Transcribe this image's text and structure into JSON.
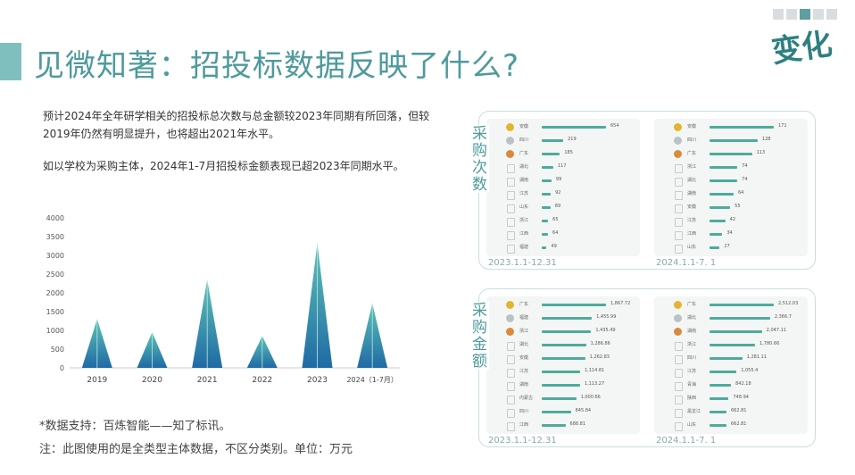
{
  "title": "见微知著：招投标数据反映了什么?",
  "logo_text": "变化",
  "nav_dots": 5,
  "nav_active": 3,
  "paragraph1": "预计2024年全年研学相关的招投标总次数与总金额较2023年同期有所回落，但较2019年仍然有明显提升，也将超出2021年水平。",
  "paragraph2": "如以学校为采购主体，2024年1-7月招投标金额表现已超2023年同期水平。",
  "note1": "*数据支持：百炼智能——知了标讯。",
  "note2": "注：此图使用的是全类型主体数据，不区分类别。单位：万元",
  "chart_data": [
    {
      "type": "area",
      "categories": [
        "2019",
        "2020",
        "2021",
        "2022",
        "2023",
        "2024（1-7月）"
      ],
      "values": [
        1300,
        950,
        2350,
        850,
        3320,
        1720
      ],
      "ylim": [
        0,
        4000
      ],
      "yticks": [
        0,
        500,
        1000,
        1500,
        2000,
        2500,
        3000,
        3500,
        4000
      ],
      "colors": [
        "#1f6aa5",
        "#5ec4b6"
      ]
    },
    {
      "type": "bar",
      "side_label": "采购次数",
      "left": {
        "period": "2023.1.1-12.31",
        "rows": [
          {
            "name": "安徽",
            "value": 654
          },
          {
            "name": "四川",
            "value": 219
          },
          {
            "name": "广东",
            "value": 185
          },
          {
            "name": "湖北",
            "value": 117
          },
          {
            "name": "湖南",
            "value": 99
          },
          {
            "name": "江苏",
            "value": 92
          },
          {
            "name": "山东",
            "value": 89
          },
          {
            "name": "浙江",
            "value": 65
          },
          {
            "name": "江西",
            "value": 64
          },
          {
            "name": "福建",
            "value": 49
          }
        ]
      },
      "right": {
        "period": "2024.1.1-7. 1",
        "rows": [
          {
            "name": "安徽",
            "value": 171
          },
          {
            "name": "四川",
            "value": 128
          },
          {
            "name": "广东",
            "value": 113
          },
          {
            "name": "浙江",
            "value": 74
          },
          {
            "name": "湖北",
            "value": 74
          },
          {
            "name": "湖南",
            "value": 64
          },
          {
            "name": "安徽",
            "value": 55
          },
          {
            "name": "江苏",
            "value": 42
          },
          {
            "name": "江西",
            "value": 34
          },
          {
            "name": "山东",
            "value": 27
          }
        ]
      }
    },
    {
      "type": "bar",
      "side_label": "采购金额",
      "left": {
        "period": "2023.1.1-12.31",
        "rows": [
          {
            "name": "广东",
            "value_label": "1,867.72",
            "value": 1867.72
          },
          {
            "name": "福建",
            "value_label": "1,455.99",
            "value": 1455.99
          },
          {
            "name": "浙江",
            "value_label": "1,435.49",
            "value": 1435.49
          },
          {
            "name": "湖北",
            "value_label": "1,286.86",
            "value": 1286.86
          },
          {
            "name": "安徽",
            "value_label": "1,262.83",
            "value": 1262.83
          },
          {
            "name": "江苏",
            "value_label": "1,114.81",
            "value": 1114.81
          },
          {
            "name": "湖南",
            "value_label": "1,113.27",
            "value": 1113.27
          },
          {
            "name": "内蒙古",
            "value_label": "1,000.66",
            "value": 1000.66
          },
          {
            "name": "四川",
            "value_label": "845.84",
            "value": 845.84
          },
          {
            "name": "江西",
            "value_label": "688.81",
            "value": 688.81
          }
        ]
      },
      "right": {
        "period": "2024.1.1-7. 1",
        "rows": [
          {
            "name": "广东",
            "value_label": "2,512.03",
            "value": 2512.03
          },
          {
            "name": "湖北",
            "value_label": "2,366.7",
            "value": 2366.7
          },
          {
            "name": "湖南",
            "value_label": "2,047.11",
            "value": 2047.11
          },
          {
            "name": "浙江",
            "value_label": "1,780.66",
            "value": 1780.66
          },
          {
            "name": "四川",
            "value_label": "1,281.11",
            "value": 1281.11
          },
          {
            "name": "江苏",
            "value_label": "1,055.4",
            "value": 1055.4
          },
          {
            "name": "青海",
            "value_label": "842.18",
            "value": 842.18
          },
          {
            "name": "陕西",
            "value_label": "748.94",
            "value": 748.94
          },
          {
            "name": "黑龙江",
            "value_label": "662.81",
            "value": 662.81
          },
          {
            "name": "山东",
            "value_label": "662.81",
            "value": 662.81
          }
        ]
      }
    }
  ]
}
